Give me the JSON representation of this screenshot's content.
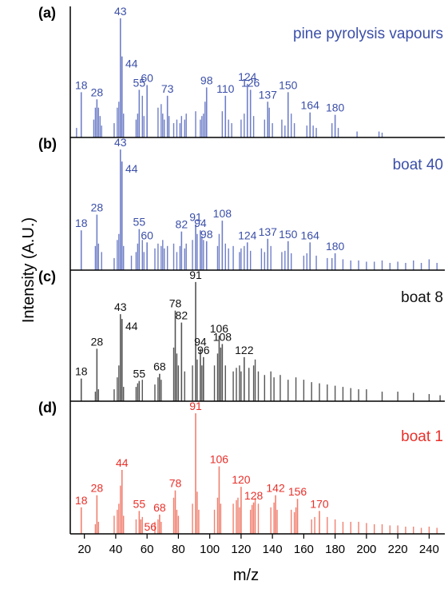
{
  "chart_data": {
    "type": "stacked_spectra",
    "xlabel": "m/z",
    "ylabel": "Intensity (A.U.)",
    "xlim": [
      11,
      250
    ],
    "xticks": [
      20,
      40,
      60,
      80,
      100,
      120,
      140,
      160,
      180,
      200,
      220,
      240
    ],
    "ylim": [
      0,
      110
    ],
    "panels": [
      {
        "letter": "(a)",
        "title": "pine pyrolysis vapours",
        "color": "#6f7fc8",
        "text_color": "#3b4fa8",
        "labeled_peaks": {
          "x": [
            18,
            28,
            43,
            44,
            55,
            60,
            73,
            98,
            110,
            124,
            126,
            137,
            150,
            164,
            180
          ],
          "values": [
            38,
            32,
            100,
            68,
            40,
            44,
            35,
            42,
            35,
            45,
            40,
            30,
            38,
            21,
            19
          ]
        },
        "peaks": {
          "x": [
            15,
            26,
            27,
            29,
            30,
            31,
            39,
            41,
            42,
            45,
            53,
            54,
            57,
            58,
            67,
            69,
            70,
            71,
            74,
            77,
            79,
            81,
            82,
            84,
            85,
            91,
            94,
            95,
            96,
            97,
            108,
            112,
            114,
            120,
            122,
            128,
            135,
            138,
            140,
            146,
            148,
            152,
            154,
            162,
            166,
            168,
            178,
            182,
            194,
            208,
            210
          ],
          "values": [
            8,
            15,
            25,
            25,
            18,
            10,
            12,
            25,
            30,
            20,
            15,
            20,
            35,
            18,
            25,
            28,
            20,
            15,
            18,
            12,
            15,
            12,
            18,
            15,
            20,
            22,
            15,
            18,
            20,
            30,
            22,
            15,
            12,
            15,
            20,
            18,
            15,
            25,
            12,
            15,
            10,
            20,
            12,
            10,
            10,
            8,
            12,
            8,
            5,
            5,
            4
          ]
        }
      },
      {
        "letter": "(b)",
        "title": "boat 40",
        "color": "#6f7fc8",
        "text_color": "#3b4fa8",
        "labeled_peaks": {
          "x": [
            18,
            28,
            43,
            44,
            55,
            60,
            82,
            91,
            94,
            98,
            108,
            124,
            137,
            150,
            164,
            180
          ],
          "values": [
            33,
            46,
            100,
            90,
            34,
            23,
            32,
            38,
            33,
            24,
            41,
            23,
            26,
            24,
            23,
            14
          ]
        },
        "peaks": {
          "x": [
            27,
            29,
            31,
            39,
            41,
            42,
            45,
            50,
            53,
            54,
            57,
            58,
            65,
            67,
            69,
            70,
            71,
            73,
            77,
            79,
            81,
            84,
            85,
            89,
            92,
            95,
            96,
            105,
            106,
            110,
            112,
            115,
            119,
            120,
            122,
            126,
            133,
            135,
            139,
            146,
            148,
            152,
            160,
            162,
            168,
            175,
            178,
            185,
            190,
            195,
            200,
            205,
            210,
            215,
            220,
            225,
            230,
            235,
            240,
            245
          ],
          "values": [
            20,
            22,
            15,
            10,
            25,
            30,
            20,
            12,
            15,
            22,
            25,
            15,
            18,
            22,
            20,
            25,
            18,
            20,
            22,
            15,
            20,
            18,
            22,
            25,
            30,
            28,
            25,
            20,
            30,
            22,
            18,
            20,
            15,
            18,
            20,
            16,
            18,
            15,
            20,
            15,
            16,
            14,
            12,
            14,
            12,
            10,
            10,
            9,
            8,
            8,
            7,
            7,
            8,
            6,
            7,
            6,
            8,
            6,
            9,
            6
          ]
        }
      },
      {
        "letter": "(c)",
        "title": "boat 8",
        "color": "#555555",
        "text_color": "#111111",
        "labeled_peaks": {
          "x": [
            18,
            28,
            43,
            44,
            55,
            68,
            78,
            82,
            91,
            94,
            96,
            106,
            108,
            122
          ],
          "values": [
            19,
            44,
            73,
            69,
            17,
            23,
            76,
            66,
            100,
            44,
            37,
            55,
            48,
            37
          ]
        },
        "peaks": {
          "x": [
            27,
            29,
            39,
            41,
            42,
            45,
            53,
            54,
            57,
            65,
            67,
            69,
            77,
            79,
            80,
            84,
            89,
            92,
            95,
            103,
            105,
            107,
            110,
            115,
            117,
            119,
            120,
            125,
            128,
            129,
            131,
            135,
            139,
            141,
            145,
            150,
            155,
            160,
            165,
            170,
            175,
            180,
            185,
            190,
            195,
            200,
            210,
            220,
            230,
            240,
            247
          ],
          "values": [
            8,
            10,
            10,
            20,
            30,
            12,
            12,
            15,
            18,
            14,
            20,
            18,
            45,
            40,
            30,
            25,
            30,
            35,
            30,
            30,
            40,
            45,
            30,
            25,
            28,
            30,
            25,
            28,
            30,
            35,
            25,
            22,
            25,
            20,
            22,
            18,
            20,
            18,
            16,
            15,
            14,
            13,
            12,
            11,
            10,
            10,
            8,
            8,
            7,
            6,
            5
          ]
        }
      },
      {
        "letter": "(d)",
        "title": "boat 1",
        "color": "#f08070",
        "text_color": "#e8302a",
        "labeled_peaks": {
          "x": [
            18,
            28,
            44,
            55,
            56,
            68,
            78,
            91,
            106,
            120,
            128,
            142,
            156,
            170
          ],
          "values": [
            22,
            32,
            53,
            19,
            12,
            16,
            36,
            100,
            56,
            39,
            26,
            32,
            29,
            19
          ]
        },
        "peaks": {
          "x": [
            27,
            29,
            39,
            41,
            42,
            43,
            45,
            53,
            57,
            65,
            67,
            69,
            77,
            79,
            80,
            89,
            92,
            93,
            103,
            105,
            107,
            115,
            117,
            118,
            119,
            126,
            127,
            129,
            131,
            139,
            141,
            143,
            152,
            154,
            155,
            165,
            167,
            175,
            180,
            185,
            190,
            195,
            200,
            205,
            210,
            215,
            220,
            225,
            230,
            235,
            240,
            245
          ],
          "values": [
            8,
            10,
            15,
            20,
            25,
            40,
            15,
            12,
            14,
            10,
            12,
            10,
            30,
            20,
            15,
            25,
            35,
            20,
            20,
            30,
            25,
            25,
            28,
            30,
            22,
            20,
            24,
            30,
            25,
            22,
            26,
            20,
            20,
            18,
            22,
            12,
            14,
            14,
            12,
            10,
            10,
            10,
            9,
            8,
            8,
            7,
            7,
            6,
            6,
            5,
            6,
            5
          ]
        }
      }
    ]
  }
}
